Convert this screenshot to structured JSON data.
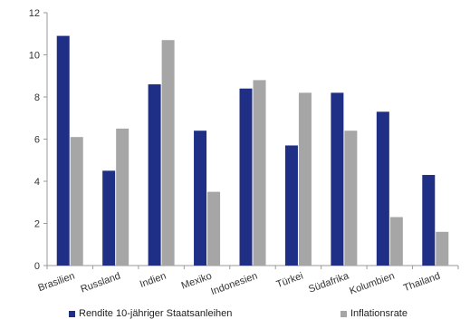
{
  "chart_data": {
    "type": "bar",
    "categories": [
      "Brasilien",
      "Russland",
      "Indien",
      "Mexiko",
      "Indonesien",
      "Türkei",
      "Südafrika",
      "Kolumbien",
      "Thailand"
    ],
    "series": [
      {
        "name": "Rendite 10-jähriger Staatsanleihen",
        "color": "#1f2f86",
        "values": [
          10.9,
          4.5,
          8.6,
          6.4,
          8.4,
          5.7,
          8.2,
          7.3,
          4.3
        ]
      },
      {
        "name": "Inflationsrate",
        "color": "#a6a6a6",
        "values": [
          6.1,
          6.5,
          10.7,
          3.5,
          8.8,
          8.2,
          6.4,
          2.3,
          1.6
        ]
      }
    ],
    "ylim": [
      0,
      12
    ],
    "yticks": [
      0,
      2,
      4,
      6,
      8,
      10,
      12
    ],
    "grid": false,
    "legend_position": "bottom",
    "title": "",
    "xlabel": "",
    "ylabel": ""
  }
}
